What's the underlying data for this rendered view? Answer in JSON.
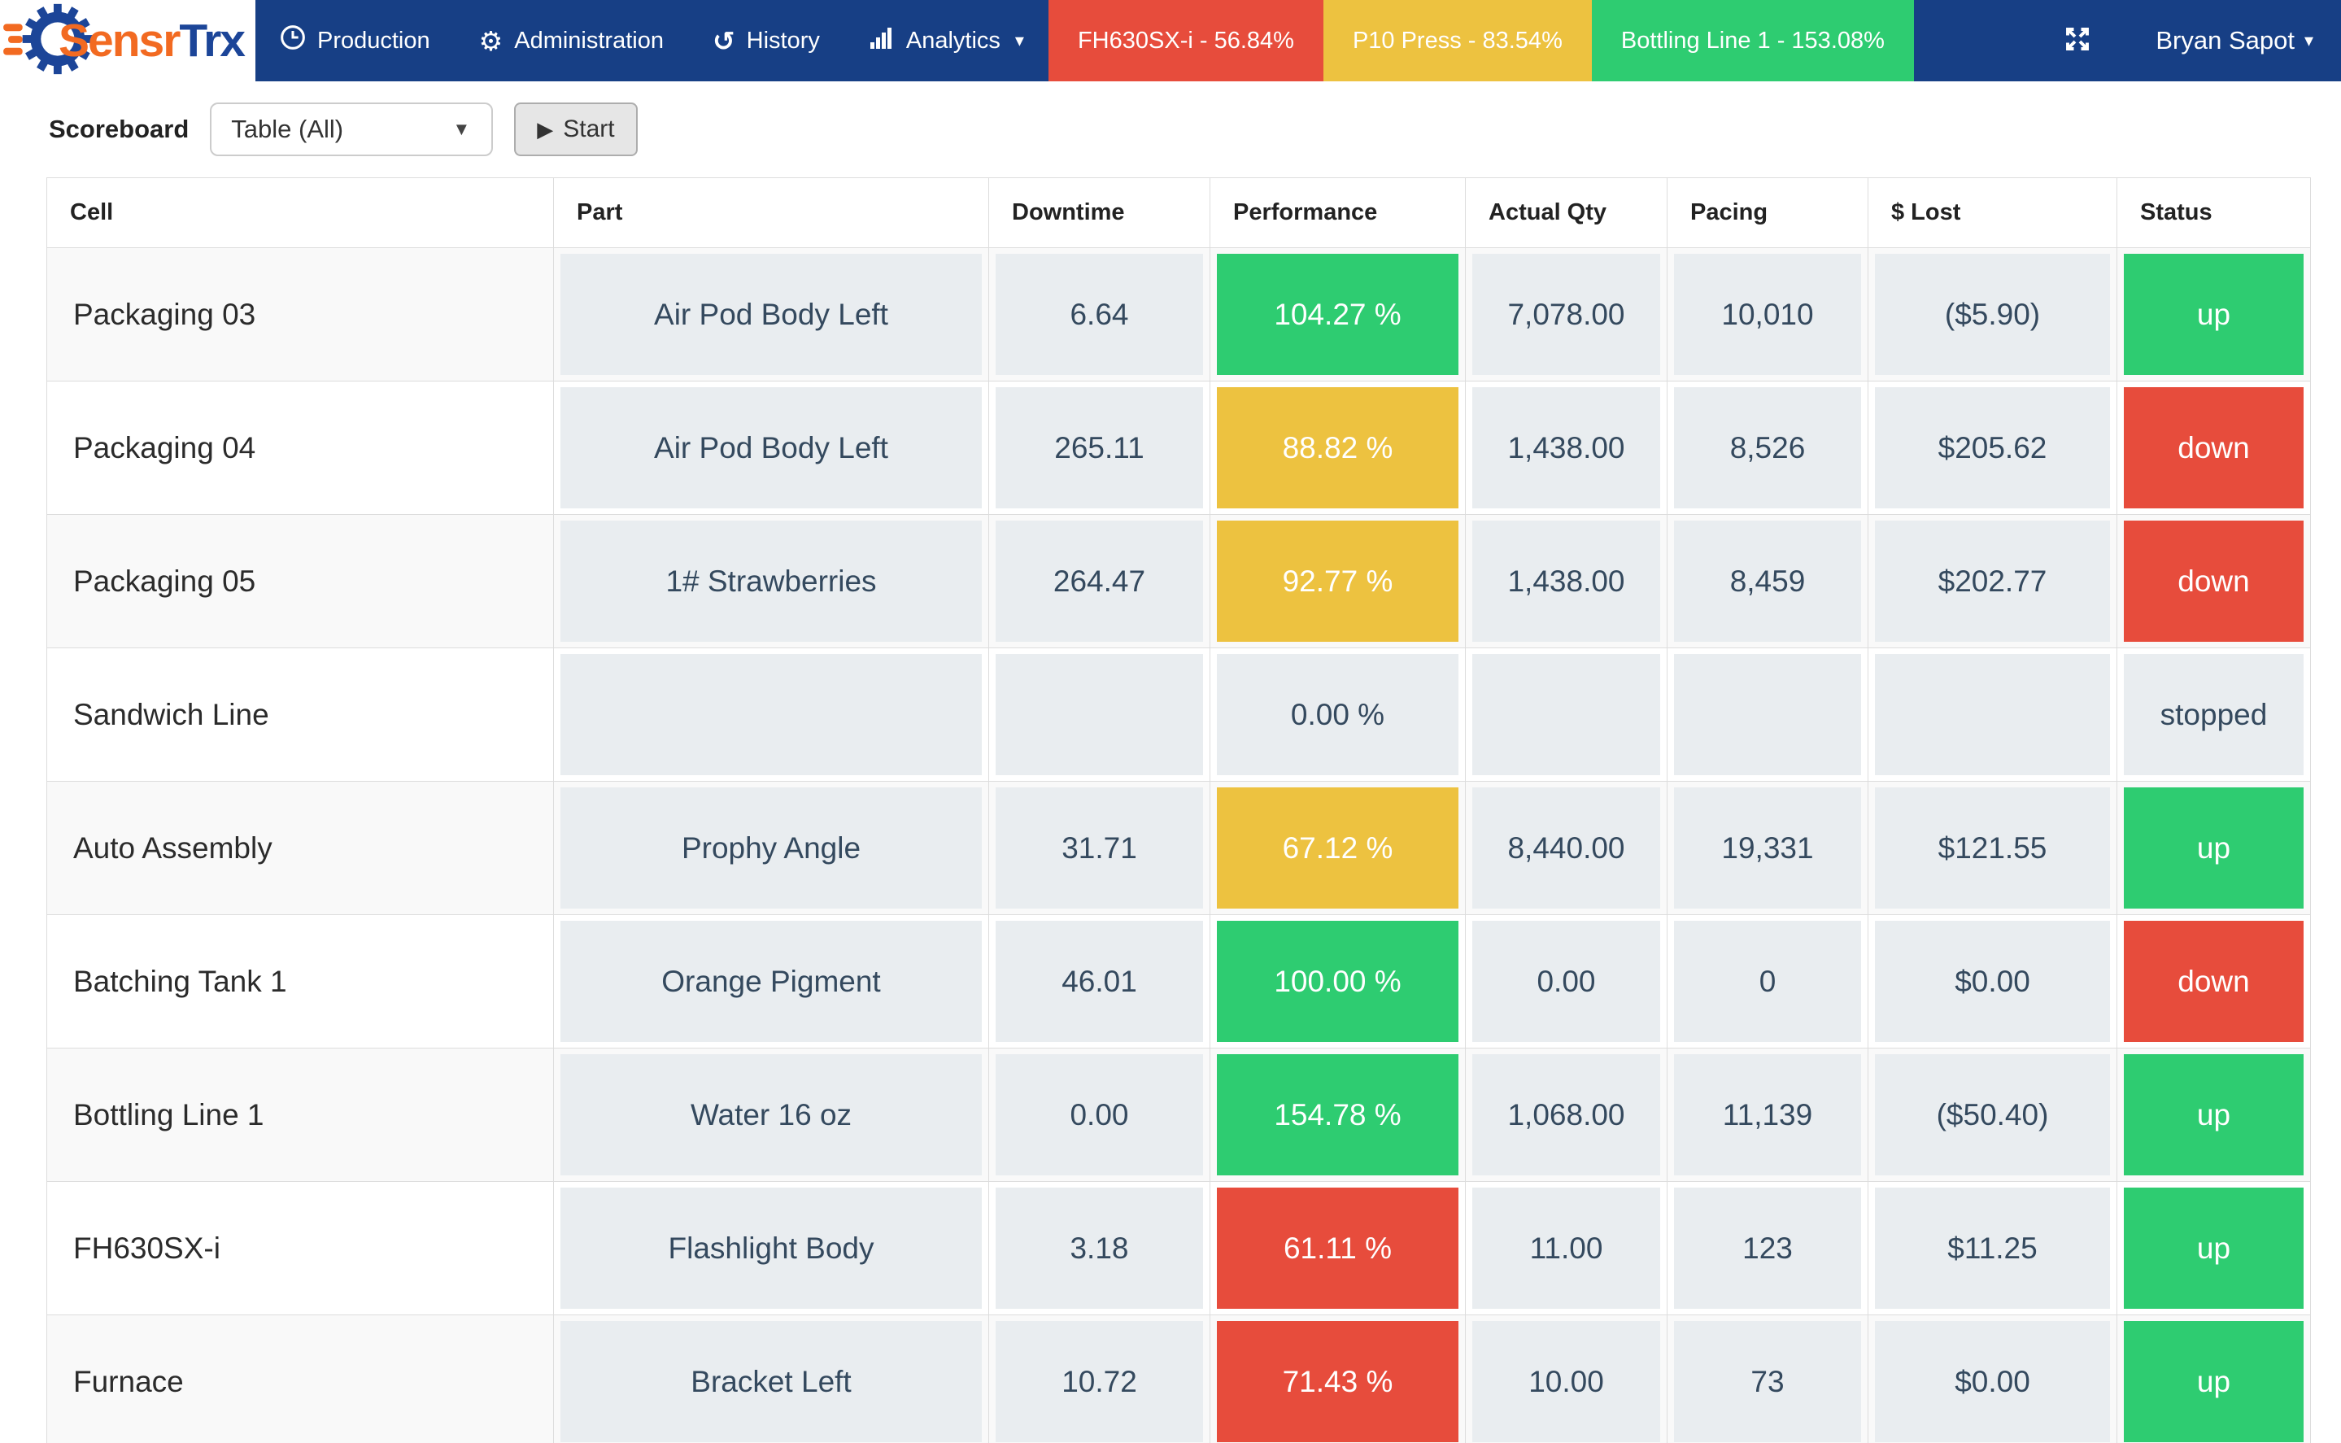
{
  "brand": {
    "sensr": "Sensr",
    "trx": "Trx"
  },
  "navbar": {
    "items": [
      {
        "label": "Production",
        "icon": "clock-icon"
      },
      {
        "label": "Administration",
        "icon": "gear-icon"
      },
      {
        "label": "History",
        "icon": "history-icon"
      },
      {
        "label": "Analytics",
        "icon": "bar-chart-icon",
        "has_caret": true
      }
    ],
    "machines": [
      {
        "label": "FH630SX-i - 56.84%",
        "color": "#e74c3c"
      },
      {
        "label": "P10 Press - 83.54%",
        "color": "#edc240"
      },
      {
        "label": "Bottling Line 1 - 153.08%",
        "color": "#2ecc71"
      }
    ],
    "user": "Bryan Sapot"
  },
  "toolbar": {
    "scoreboard_label": "Scoreboard",
    "view_select_value": "Table (All)",
    "start_label": "Start"
  },
  "theme": {
    "navbar_bg": "#173f85",
    "green": "#2ecc71",
    "yellow": "#edc240",
    "red": "#e74c3c",
    "neutral_cell_bg": "#e9edf0"
  },
  "table": {
    "columns": [
      "Cell",
      "Part",
      "Downtime",
      "Performance",
      "Actual Qty",
      "Pacing",
      "$ Lost",
      "Status"
    ],
    "rows": [
      {
        "cell": "Packaging 03",
        "part": "Air Pod Body Left",
        "downtime": "6.64",
        "performance": "104.27 %",
        "performance_color": "green",
        "actual_qty": "7,078.00",
        "pacing": "10,010",
        "lost": "($5.90)",
        "status": "up",
        "status_color": "green"
      },
      {
        "cell": "Packaging 04",
        "part": "Air Pod Body Left",
        "downtime": "265.11",
        "performance": "88.82 %",
        "performance_color": "yellow",
        "actual_qty": "1,438.00",
        "pacing": "8,526",
        "lost": "$205.62",
        "status": "down",
        "status_color": "red"
      },
      {
        "cell": "Packaging 05",
        "part": "1# Strawberries",
        "downtime": "264.47",
        "performance": "92.77 %",
        "performance_color": "yellow",
        "actual_qty": "1,438.00",
        "pacing": "8,459",
        "lost": "$202.77",
        "status": "down",
        "status_color": "red"
      },
      {
        "cell": "Sandwich Line",
        "part": "",
        "downtime": "",
        "performance": "0.00 %",
        "performance_color": "neutral",
        "actual_qty": "",
        "pacing": "",
        "lost": "",
        "status": "stopped",
        "status_color": "neutral"
      },
      {
        "cell": "Auto Assembly",
        "part": "Prophy Angle",
        "downtime": "31.71",
        "performance": "67.12 %",
        "performance_color": "yellow",
        "actual_qty": "8,440.00",
        "pacing": "19,331",
        "lost": "$121.55",
        "status": "up",
        "status_color": "green"
      },
      {
        "cell": "Batching Tank 1",
        "part": "Orange Pigment",
        "downtime": "46.01",
        "performance": "100.00 %",
        "performance_color": "green",
        "actual_qty": "0.00",
        "pacing": "0",
        "lost": "$0.00",
        "status": "down",
        "status_color": "red"
      },
      {
        "cell": "Bottling Line 1",
        "part": "Water 16 oz",
        "downtime": "0.00",
        "performance": "154.78 %",
        "performance_color": "green",
        "actual_qty": "1,068.00",
        "pacing": "11,139",
        "lost": "($50.40)",
        "status": "up",
        "status_color": "green"
      },
      {
        "cell": "FH630SX-i",
        "part": "Flashlight Body",
        "downtime": "3.18",
        "performance": "61.11 %",
        "performance_color": "red",
        "actual_qty": "11.00",
        "pacing": "123",
        "lost": "$11.25",
        "status": "up",
        "status_color": "green"
      },
      {
        "cell": "Furnace",
        "part": "Bracket Left",
        "downtime": "10.72",
        "performance": "71.43 %",
        "performance_color": "red",
        "actual_qty": "10.00",
        "pacing": "73",
        "lost": "$0.00",
        "status": "up",
        "status_color": "green"
      }
    ]
  }
}
